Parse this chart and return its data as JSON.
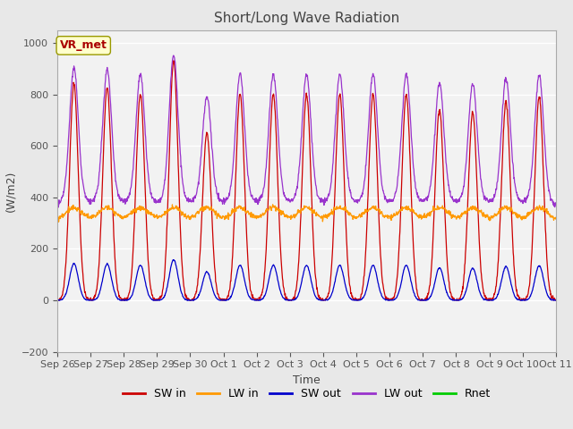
{
  "title": "Short/Long Wave Radiation",
  "xlabel": "Time",
  "ylabel": "(W/m2)",
  "ylim": [
    -200,
    1050
  ],
  "yticks": [
    -200,
    0,
    200,
    400,
    600,
    800,
    1000
  ],
  "annotation_text": "VR_met",
  "x_tick_labels": [
    "Sep 26",
    "Sep 27",
    "Sep 28",
    "Sep 29",
    "Sep 30",
    "Oct 1",
    "Oct 2",
    "Oct 3",
    "Oct 4",
    "Oct 5",
    "Oct 6",
    "Oct 7",
    "Oct 8",
    "Oct 9",
    "Oct 10",
    "Oct 11"
  ],
  "legend_labels": [
    "SW in",
    "LW in",
    "SW out",
    "LW out",
    "Rnet"
  ],
  "legend_colors": [
    "#cc0000",
    "#ff9900",
    "#0000cc",
    "#9933cc",
    "#00cc00"
  ],
  "fig_facecolor": "#e8e8e8",
  "ax_facecolor": "#f2f2f2",
  "n_days": 15,
  "sw_in_peaks": [
    840,
    830,
    800,
    930,
    650,
    800,
    800,
    800,
    800,
    800,
    800,
    740,
    730,
    770,
    790
  ],
  "pts_per_day": 96
}
